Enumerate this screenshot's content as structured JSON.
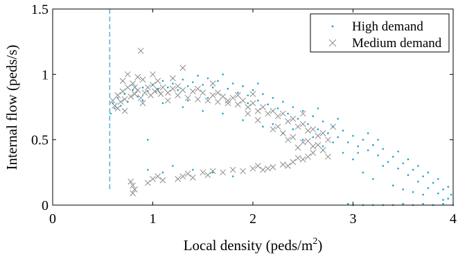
{
  "chart_data": {
    "type": "scatter",
    "title": "",
    "xlabel": {
      "text": "Local density (peds/m",
      "superscript": "2",
      "suffix": ")"
    },
    "ylabel": "Internal flow (peds/s)",
    "xlim": [
      0,
      4
    ],
    "ylim": [
      0,
      1.5
    ],
    "xticks": [
      0,
      1,
      2,
      3,
      4
    ],
    "xtick_labels": [
      "0",
      "1",
      "2",
      "3",
      "4"
    ],
    "yticks": [
      0,
      0.5,
      1,
      1.5
    ],
    "ytick_labels": [
      "0",
      "0.5",
      "1",
      "1.5"
    ],
    "grid": false,
    "legend_position": "top-right",
    "reference_line": {
      "orientation": "vertical",
      "x": 0.57,
      "y_range": [
        0.1,
        1.5
      ],
      "style": "dashed",
      "color": "#5bb7d8"
    },
    "series": [
      {
        "name": "High demand",
        "marker": "dot",
        "color": "#1aa3cf",
        "points": [
          [
            0.58,
            0.7
          ],
          [
            0.6,
            0.78
          ],
          [
            0.62,
            0.74
          ],
          [
            0.65,
            0.82
          ],
          [
            0.68,
            0.76
          ],
          [
            0.72,
            0.85
          ],
          [
            0.75,
            0.79
          ],
          [
            0.8,
            0.88
          ],
          [
            0.85,
            0.83
          ],
          [
            0.9,
            0.9
          ],
          [
            0.95,
            0.87
          ],
          [
            1.0,
            0.92
          ],
          [
            1.05,
            0.89
          ],
          [
            1.1,
            0.95
          ],
          [
            1.15,
            0.9
          ],
          [
            1.2,
            0.93
          ],
          [
            1.25,
            0.88
          ],
          [
            1.3,
            0.96
          ],
          [
            1.35,
            0.91
          ],
          [
            1.4,
            0.94
          ],
          [
            1.45,
            0.99
          ],
          [
            1.5,
            0.92
          ],
          [
            1.55,
            0.97
          ],
          [
            1.6,
            0.9
          ],
          [
            1.65,
            0.95
          ],
          [
            1.7,
            1.0
          ],
          [
            1.75,
            0.89
          ],
          [
            1.8,
            0.93
          ],
          [
            1.85,
            0.86
          ],
          [
            1.9,
            0.91
          ],
          [
            1.95,
            0.84
          ],
          [
            2.0,
            0.88
          ],
          [
            2.05,
            0.8
          ],
          [
            2.1,
            0.85
          ],
          [
            2.15,
            0.77
          ],
          [
            2.2,
            0.82
          ],
          [
            2.25,
            0.74
          ],
          [
            2.3,
            0.79
          ],
          [
            2.35,
            0.7
          ],
          [
            2.4,
            0.75
          ],
          [
            2.45,
            0.66
          ],
          [
            2.5,
            0.72
          ],
          [
            2.55,
            0.62
          ],
          [
            2.6,
            0.68
          ],
          [
            2.65,
            0.58
          ],
          [
            2.7,
            0.64
          ],
          [
            2.75,
            0.55
          ],
          [
            2.8,
            0.6
          ],
          [
            2.85,
            0.52
          ],
          [
            2.9,
            0.57
          ],
          [
            2.95,
            0.48
          ],
          [
            3.0,
            0.53
          ],
          [
            3.05,
            0.45
          ],
          [
            3.1,
            0.5
          ],
          [
            3.15,
            0.42
          ],
          [
            3.2,
            0.46
          ],
          [
            3.25,
            0.38
          ],
          [
            3.3,
            0.43
          ],
          [
            3.35,
            0.33
          ],
          [
            3.4,
            0.37
          ],
          [
            3.45,
            0.28
          ],
          [
            3.5,
            0.32
          ],
          [
            3.55,
            0.23
          ],
          [
            3.6,
            0.27
          ],
          [
            3.65,
            0.18
          ],
          [
            3.7,
            0.22
          ],
          [
            3.75,
            0.13
          ],
          [
            3.8,
            0.17
          ],
          [
            3.85,
            0.09
          ],
          [
            3.9,
            0.12
          ],
          [
            3.95,
            0.05
          ],
          [
            3.98,
            0.08
          ],
          [
            3.2,
            0.2
          ],
          [
            3.4,
            0.15
          ],
          [
            3.6,
            0.1
          ],
          [
            3.3,
            0.3
          ],
          [
            3.0,
            0.35
          ],
          [
            2.9,
            0.4
          ],
          [
            2.7,
            0.45
          ],
          [
            2.5,
            0.5
          ],
          [
            2.3,
            0.55
          ],
          [
            2.1,
            0.6
          ],
          [
            1.9,
            0.65
          ],
          [
            1.7,
            0.7
          ],
          [
            1.5,
            0.72
          ],
          [
            1.3,
            0.75
          ],
          [
            1.1,
            0.78
          ],
          [
            0.9,
            0.8
          ],
          [
            2.2,
            0.62
          ],
          [
            2.4,
            0.58
          ],
          [
            2.6,
            0.52
          ],
          [
            2.8,
            0.48
          ],
          [
            3.1,
            0.25
          ],
          [
            3.5,
            0.12
          ],
          [
            3.7,
            0.08
          ],
          [
            3.9,
            0.04
          ],
          [
            1.2,
            0.3
          ],
          [
            1.4,
            0.27
          ],
          [
            1.6,
            0.25
          ],
          [
            1.8,
            0.22
          ],
          [
            0.95,
            0.27
          ],
          [
            0.95,
            0.5
          ],
          [
            1.1,
            0.25
          ],
          [
            1.55,
            0.82
          ],
          [
            1.35,
            0.8
          ],
          [
            2.05,
            0.93
          ],
          [
            1.95,
            0.78
          ],
          [
            2.65,
            0.74
          ],
          [
            2.85,
            0.66
          ],
          [
            3.05,
            0.4
          ],
          [
            3.15,
            0.55
          ],
          [
            3.25,
            0.5
          ],
          [
            3.45,
            0.41
          ],
          [
            3.55,
            0.35
          ],
          [
            3.65,
            0.3
          ],
          [
            3.75,
            0.25
          ],
          [
            3.85,
            0.2
          ],
          [
            3.95,
            0.14
          ],
          [
            3.0,
            0.0
          ],
          [
            3.2,
            0.0
          ],
          [
            3.4,
            0.0
          ],
          [
            3.6,
            0.0
          ],
          [
            3.8,
            0.0
          ],
          [
            4.0,
            0.0
          ],
          [
            3.5,
            0.01
          ],
          [
            3.7,
            0.01
          ],
          [
            3.9,
            0.01
          ],
          [
            3.1,
            0.0
          ],
          [
            3.3,
            0.0
          ],
          [
            2.95,
            0.01
          ]
        ]
      },
      {
        "name": "Medium demand",
        "marker": "x",
        "color": "#8c8c8c",
        "points": [
          [
            0.6,
            0.8
          ],
          [
            0.62,
            0.76
          ],
          [
            0.65,
            0.84
          ],
          [
            0.68,
            0.79
          ],
          [
            0.7,
            0.87
          ],
          [
            0.72,
            0.81
          ],
          [
            0.75,
            0.9
          ],
          [
            0.78,
            0.83
          ],
          [
            0.8,
            0.93
          ],
          [
            0.82,
            0.85
          ],
          [
            0.85,
            0.88
          ],
          [
            0.88,
            0.82
          ],
          [
            0.9,
            0.96
          ],
          [
            0.92,
            0.86
          ],
          [
            0.95,
            0.9
          ],
          [
            0.98,
            0.84
          ],
          [
            1.0,
            0.92
          ],
          [
            1.02,
            0.87
          ],
          [
            1.05,
            0.95
          ],
          [
            1.08,
            0.85
          ],
          [
            1.1,
            0.9
          ],
          [
            1.15,
            0.86
          ],
          [
            1.2,
            0.89
          ],
          [
            1.25,
            0.84
          ],
          [
            1.3,
            0.88
          ],
          [
            1.35,
            0.82
          ],
          [
            1.4,
            0.87
          ],
          [
            1.45,
            0.81
          ],
          [
            1.5,
            0.86
          ],
          [
            1.55,
            0.8
          ],
          [
            1.6,
            0.84
          ],
          [
            1.65,
            0.79
          ],
          [
            1.7,
            0.83
          ],
          [
            1.75,
            0.78
          ],
          [
            1.8,
            0.82
          ],
          [
            1.85,
            0.77
          ],
          [
            1.9,
            0.8
          ],
          [
            1.95,
            0.75
          ],
          [
            2.0,
            0.78
          ],
          [
            2.05,
            0.72
          ],
          [
            2.1,
            0.75
          ],
          [
            2.15,
            0.7
          ],
          [
            2.2,
            0.72
          ],
          [
            2.25,
            0.68
          ],
          [
            2.3,
            0.7
          ],
          [
            2.35,
            0.64
          ],
          [
            2.4,
            0.66
          ],
          [
            2.45,
            0.6
          ],
          [
            2.5,
            0.62
          ],
          [
            2.55,
            0.57
          ],
          [
            2.6,
            0.58
          ],
          [
            2.65,
            0.53
          ],
          [
            2.7,
            0.55
          ],
          [
            2.75,
            0.5
          ],
          [
            2.3,
            0.55
          ],
          [
            2.4,
            0.52
          ],
          [
            2.5,
            0.48
          ],
          [
            2.2,
            0.58
          ],
          [
            2.6,
            0.45
          ],
          [
            2.7,
            0.42
          ],
          [
            0.88,
            1.18
          ],
          [
            1.3,
            1.05
          ],
          [
            0.7,
            0.95
          ],
          [
            0.75,
            1.0
          ],
          [
            0.85,
            0.98
          ],
          [
            1.0,
            1.0
          ],
          [
            1.2,
            0.97
          ],
          [
            1.6,
            0.93
          ],
          [
            2.0,
            0.85
          ],
          [
            2.5,
            0.7
          ],
          [
            0.8,
            0.15
          ],
          [
            0.82,
            0.12
          ],
          [
            0.78,
            0.18
          ],
          [
            0.8,
            0.09
          ],
          [
            0.95,
            0.17
          ],
          [
            1.0,
            0.2
          ],
          [
            1.05,
            0.22
          ],
          [
            1.1,
            0.19
          ],
          [
            1.25,
            0.2
          ],
          [
            1.3,
            0.22
          ],
          [
            1.35,
            0.24
          ],
          [
            1.4,
            0.21
          ],
          [
            1.5,
            0.25
          ],
          [
            1.55,
            0.23
          ],
          [
            1.6,
            0.26
          ],
          [
            1.7,
            0.25
          ],
          [
            1.8,
            0.27
          ],
          [
            1.9,
            0.26
          ],
          [
            2.0,
            0.28
          ],
          [
            2.05,
            0.3
          ],
          [
            2.1,
            0.27
          ],
          [
            2.2,
            0.29
          ],
          [
            2.3,
            0.31
          ],
          [
            2.4,
            0.33
          ],
          [
            2.5,
            0.35
          ],
          [
            2.55,
            0.37
          ],
          [
            2.6,
            0.4
          ],
          [
            2.45,
            0.36
          ],
          [
            2.35,
            0.3
          ],
          [
            2.15,
            0.28
          ],
          [
            1.75,
            0.8
          ],
          [
            1.85,
            0.84
          ],
          [
            1.65,
            0.86
          ],
          [
            1.45,
            0.89
          ],
          [
            1.25,
            0.91
          ],
          [
            1.05,
            0.88
          ],
          [
            0.72,
            0.72
          ],
          [
            0.65,
            0.74
          ],
          [
            0.9,
            0.78
          ],
          [
            2.25,
            0.6
          ],
          [
            2.35,
            0.5
          ],
          [
            2.45,
            0.44
          ],
          [
            2.55,
            0.49
          ],
          [
            2.65,
            0.46
          ],
          [
            2.05,
            0.65
          ],
          [
            1.95,
            0.7
          ],
          [
            2.8,
            0.6
          ],
          [
            2.75,
            0.37
          ],
          [
            1.15,
            0.8
          ],
          [
            0.82,
            0.9
          ]
        ]
      }
    ]
  }
}
